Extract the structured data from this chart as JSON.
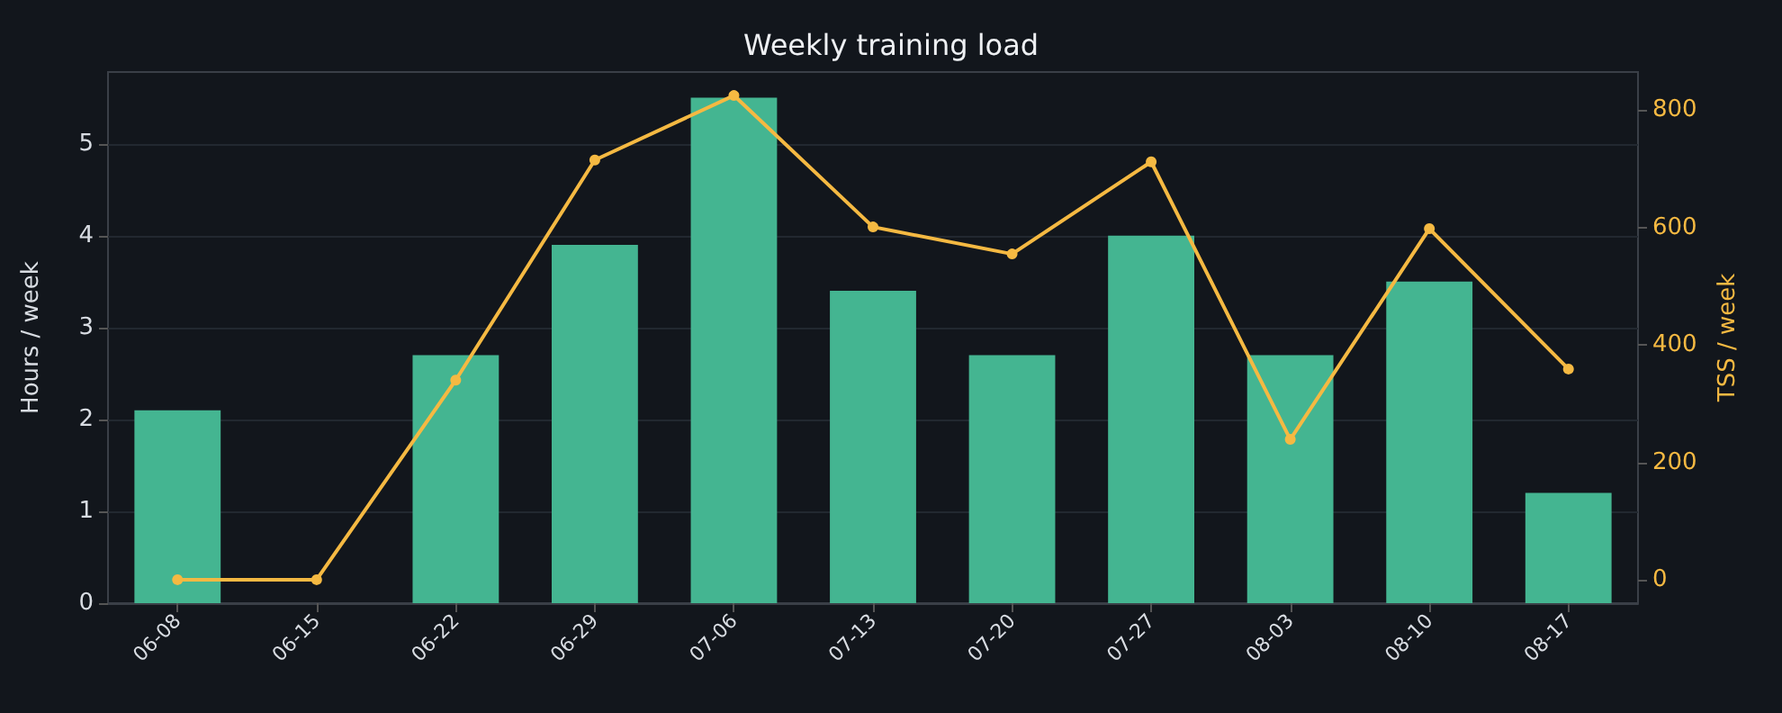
{
  "chart_data": {
    "type": "bar",
    "title": "Weekly training load",
    "ylabel": "Hours / week",
    "y2label": "TSS / week",
    "categories": [
      "06-08",
      "06-15",
      "06-22",
      "06-29",
      "07-06",
      "07-13",
      "07-20",
      "07-27",
      "08-03",
      "08-10",
      "08-17"
    ],
    "series": [
      {
        "color": "#44b591",
        "values": [
          2.1,
          0,
          2.7,
          3.9,
          5.5,
          3.4,
          2.7,
          4.0,
          2.7,
          3.5,
          1.2
        ]
      },
      {
        "type": "line",
        "axis": "y2",
        "color": "#f5b942",
        "marker": "circle",
        "values": [
          0,
          0,
          340,
          715,
          825,
          601,
          555,
          712,
          239,
          598,
          359
        ]
      }
    ],
    "ylim": [
      0,
      5.78
    ],
    "yticks": [
      0,
      1,
      2,
      3,
      4,
      5
    ],
    "y2lim": [
      -40,
      865
    ],
    "y2ticks": [
      0,
      200,
      400,
      600,
      800
    ],
    "grid": "y"
  }
}
